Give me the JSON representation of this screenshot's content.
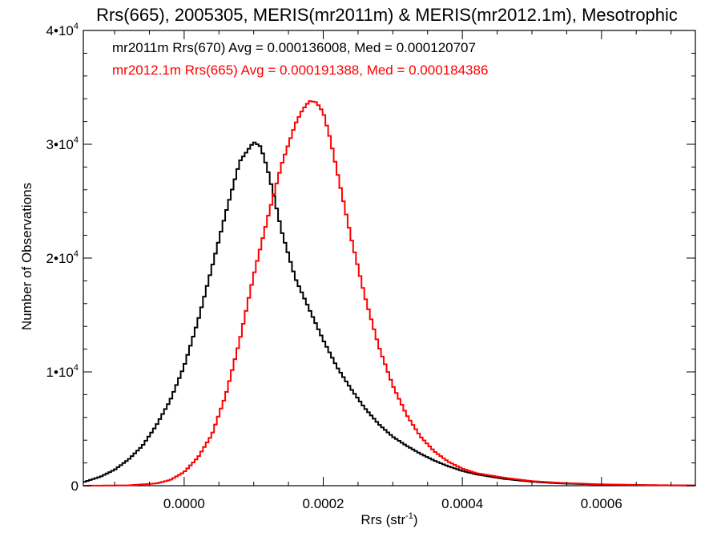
{
  "chart_data": {
    "type": "line",
    "title": "Rrs(665), 2005305, MERIS(mr2011m) & MERIS(mr2012.1m), Mesotrophic",
    "xlabel": {
      "main": "Rrs (str",
      "sup": "-1",
      "close": ")"
    },
    "ylabel": "Number of Observations",
    "xlim": [
      -0.000145,
      0.000735
    ],
    "ylim": [
      0,
      40000
    ],
    "x_ticks": [
      {
        "value": 0.0,
        "label": "0.0000"
      },
      {
        "value": 0.0002,
        "label": "0.0002"
      },
      {
        "value": 0.0004,
        "label": "0.0004"
      },
      {
        "value": 0.0006,
        "label": "0.0006"
      }
    ],
    "y_ticks": [
      {
        "value": 0,
        "label": "0",
        "exp": ""
      },
      {
        "value": 10000,
        "label": "1•10",
        "exp": "4"
      },
      {
        "value": 20000,
        "label": "2•10",
        "exp": "4"
      },
      {
        "value": 30000,
        "label": "3•10",
        "exp": "4"
      },
      {
        "value": 40000,
        "label": "4•10",
        "exp": "4"
      }
    ],
    "grid": false,
    "legend_position": "top-left",
    "series": [
      {
        "name": "mr2011m Rrs(670) Avg = 0.000136008, Med = 0.000120707",
        "color": "#000000",
        "x": [
          -0.000145,
          -0.00012,
          -0.0001,
          -8e-05,
          -6e-05,
          -4e-05,
          -2e-05,
          0.0,
          2e-05,
          4e-05,
          6e-05,
          8e-05,
          0.0001,
          0.00011,
          0.00012,
          0.00013,
          0.00014,
          0.00016,
          0.00018,
          0.0002,
          0.00022,
          0.00024,
          0.00026,
          0.00028,
          0.0003,
          0.00032,
          0.00034,
          0.00036,
          0.00038,
          0.0004,
          0.00042,
          0.00046,
          0.0005,
          0.00054,
          0.0006,
          0.00066,
          0.00072,
          0.000735
        ],
        "y": [
          300,
          800,
          1400,
          2300,
          3500,
          5300,
          7500,
          10500,
          14500,
          19200,
          24000,
          28500,
          30200,
          29800,
          27800,
          25200,
          22400,
          18200,
          15500,
          12800,
          10400,
          8500,
          6800,
          5400,
          4300,
          3500,
          2800,
          2200,
          1700,
          1300,
          1000,
          600,
          350,
          200,
          100,
          50,
          20,
          15
        ]
      },
      {
        "name": "mr2012.1m Rrs(665) Avg = 0.000191388, Med = 0.000184386",
        "color": "#ff0000",
        "x": [
          -0.000145,
          -8e-05,
          -4e-05,
          -2e-05,
          0.0,
          2e-05,
          4e-05,
          6e-05,
          8e-05,
          0.0001,
          0.00012,
          0.00014,
          0.00016,
          0.00017,
          0.00018,
          0.00019,
          0.0002,
          0.00021,
          0.00022,
          0.00024,
          0.00026,
          0.00028,
          0.0003,
          0.00032,
          0.00034,
          0.00036,
          0.00038,
          0.0004,
          0.00042,
          0.00046,
          0.0005,
          0.00054,
          0.0006,
          0.00066,
          0.00072,
          0.000735
        ],
        "y": [
          0,
          30,
          200,
          500,
          1200,
          2500,
          4500,
          8000,
          12800,
          18500,
          23500,
          28200,
          31800,
          33000,
          33800,
          33700,
          32800,
          30500,
          27600,
          21800,
          16600,
          12200,
          8800,
          6200,
          4300,
          3000,
          2100,
          1500,
          1100,
          700,
          400,
          250,
          120,
          60,
          25,
          15
        ]
      }
    ]
  }
}
